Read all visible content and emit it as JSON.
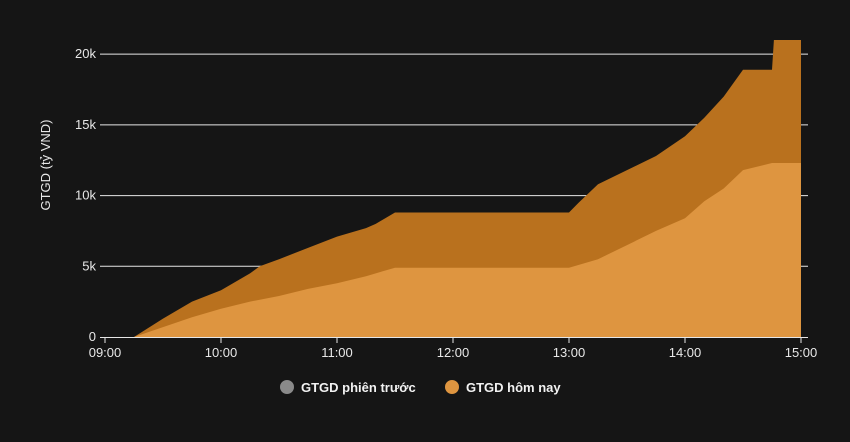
{
  "chart_data": {
    "type": "area",
    "title": "",
    "xlabel": "",
    "ylabel": "GTGD (tỷ VND)",
    "x_ticks": [
      "09:00",
      "10:00",
      "11:00",
      "12:00",
      "13:00",
      "14:00",
      "15:00"
    ],
    "y_ticks": [
      "0",
      "5k",
      "10k",
      "15k",
      "20k"
    ],
    "xlim": [
      "09:00",
      "15:00"
    ],
    "ylim": [
      0,
      21000
    ],
    "grid": true,
    "legend_position": "bottom-center",
    "series": [
      {
        "name": "GTGD phiên trước",
        "color": "#b9711e",
        "x": [
          "09:15",
          "09:30",
          "09:45",
          "10:00",
          "10:15",
          "10:20",
          "10:30",
          "10:45",
          "11:00",
          "11:15",
          "11:20",
          "11:30",
          "12:00",
          "12:30",
          "13:00",
          "13:05",
          "13:15",
          "13:30",
          "13:45",
          "14:00",
          "14:10",
          "14:20",
          "14:30",
          "14:45",
          "14:46",
          "15:00"
        ],
        "values": [
          0,
          1300,
          2500,
          3300,
          4500,
          5000,
          5500,
          6300,
          7100,
          7700,
          8000,
          8800,
          8800,
          8800,
          8800,
          9500,
          10800,
          11800,
          12800,
          14200,
          15500,
          17000,
          18900,
          18900,
          21000,
          21000
        ]
      },
      {
        "name": "GTGD hôm nay",
        "color": "#de9540",
        "x": [
          "09:15",
          "09:30",
          "09:45",
          "10:00",
          "10:15",
          "10:30",
          "10:45",
          "11:00",
          "11:15",
          "11:30",
          "12:00",
          "12:30",
          "13:00",
          "13:15",
          "13:30",
          "13:45",
          "14:00",
          "14:10",
          "14:20",
          "14:30",
          "14:45",
          "15:00"
        ],
        "values": [
          0,
          700,
          1400,
          2000,
          2500,
          2900,
          3400,
          3800,
          4300,
          4900,
          4900,
          4900,
          4900,
          5500,
          6500,
          7500,
          8400,
          9600,
          10500,
          11800,
          12300,
          12300
        ]
      }
    ]
  }
}
